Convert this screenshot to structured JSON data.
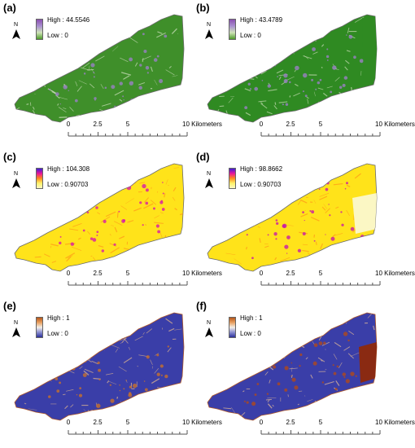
{
  "panels": [
    {
      "label": "(a)",
      "legend": {
        "high": "High : 44.5546",
        "low": "Low : 0",
        "ramp": [
          "#8b4fb0",
          "#a98fd0",
          "#cfe4b8",
          "#4e9a2a"
        ]
      },
      "map_fill": "#3f8f2a",
      "map_detail": "#c8dcb8",
      "map_hot": "#9a7fc4"
    },
    {
      "label": "(b)",
      "legend": {
        "high": "High : 43.4789",
        "low": "Low : 0",
        "ramp": [
          "#8b4fb0",
          "#a98fd0",
          "#cfe4b8",
          "#4e9a2a"
        ]
      },
      "map_fill": "#2f8a22",
      "map_detail": "#bcd6aa",
      "map_hot": "#9a7fc4"
    },
    {
      "label": "(c)",
      "legend": {
        "high": "High : 104.308",
        "low": "Low : 0.90703",
        "ramp": [
          "#3b1fd6",
          "#e8149a",
          "#ff8a1a",
          "#fff36a",
          "#fbf7c4"
        ]
      },
      "map_fill": "#ffe31a",
      "map_detail": "#ff9a1a",
      "map_hot": "#d81aa8"
    },
    {
      "label": "(d)",
      "legend": {
        "high": "High : 98.8662",
        "low": "Low : 0.90703",
        "ramp": [
          "#3b1fd6",
          "#e8149a",
          "#ff8a1a",
          "#fff36a",
          "#fbf7c4"
        ]
      },
      "map_fill": "#ffe31a",
      "map_detail": "#ff9a1a",
      "map_hot": "#c81aa8"
    },
    {
      "label": "(e)",
      "legend": {
        "high": "High : 1",
        "low": "Low : 0",
        "ramp": [
          "#b5561a",
          "#e8a060",
          "#f3efe8",
          "#8a8ed0",
          "#2b2f9a"
        ]
      },
      "map_fill": "#3a3ea8",
      "map_detail": "#d8b090",
      "map_hot": "#c8702a"
    },
    {
      "label": "(f)",
      "legend": {
        "high": "High : 1",
        "low": "Low : 0",
        "ramp": [
          "#b5561a",
          "#e8a060",
          "#f3efe8",
          "#8a8ed0",
          "#2b2f9a"
        ]
      },
      "map_fill": "#3a3ea8",
      "map_detail": "#e0b898",
      "map_hot": "#b04a1a"
    }
  ],
  "north_label": "N",
  "scale": {
    "ticks": [
      "0",
      "2.5",
      "5",
      "10 Kilometers"
    ],
    "tick_values_km": [
      0,
      2.5,
      5,
      10
    ]
  }
}
